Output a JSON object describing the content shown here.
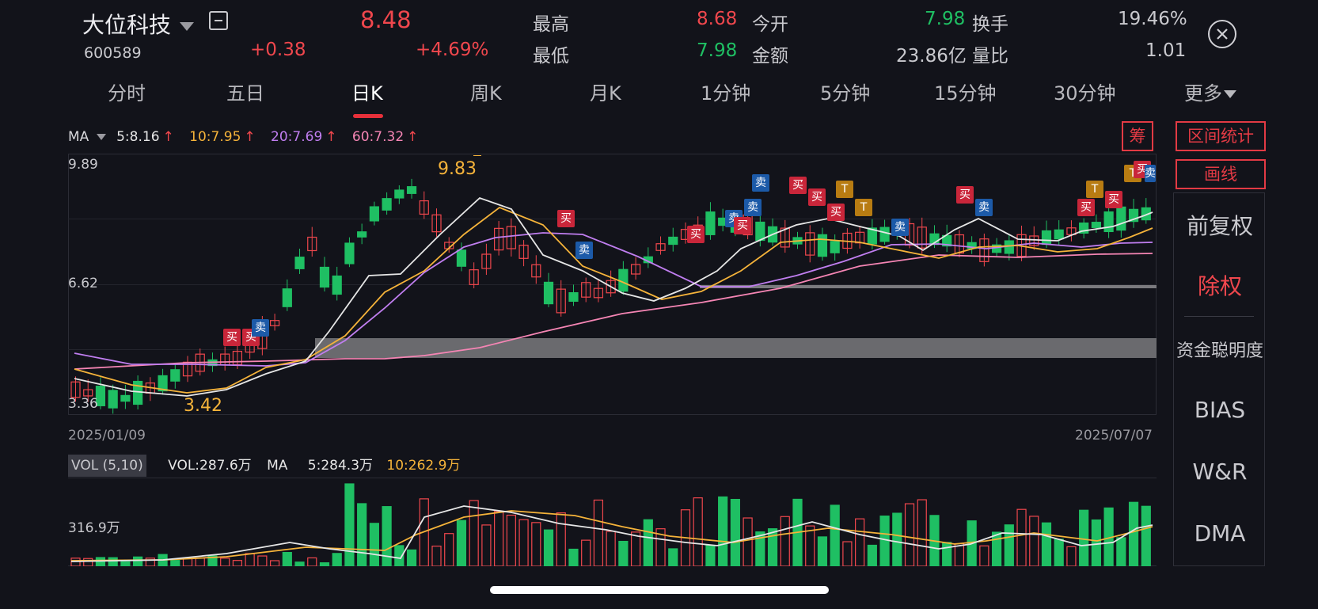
{
  "header": {
    "stock_name": "大位科技",
    "stock_code": "600589",
    "price": "8.48",
    "change": "+0.38",
    "change_pct": "+4.69%",
    "stats": [
      {
        "label": "最高",
        "value": "8.68"
      },
      {
        "label": "最低",
        "value": "7.98"
      },
      {
        "label": "今开",
        "value": "7.98"
      },
      {
        "label": "金额",
        "value": "23.86亿"
      },
      {
        "label": "换手",
        "value": "19.46%"
      },
      {
        "label": "量比",
        "value": "1.01"
      }
    ]
  },
  "tabs": [
    "分时",
    "五日",
    "日K",
    "周K",
    "月K",
    "1分钟",
    "5分钟",
    "15分钟",
    "30分钟",
    "更多"
  ],
  "active_tab": "日K",
  "ma_legend": {
    "label": "MA",
    "items": [
      {
        "text": "5:8.16",
        "color": "#e6e6e6"
      },
      {
        "text": "10:7.95",
        "color": "#f5b33a"
      },
      {
        "text": "20:7.69",
        "color": "#c07ef0"
      },
      {
        "text": "60:7.32",
        "color": "#f585b4"
      }
    ]
  },
  "price_axis": {
    "top": "9.89",
    "mid": "6.62",
    "bottom": "3.36"
  },
  "annotations": {
    "high": "9.83",
    "low": "3.42"
  },
  "date_axis": {
    "start": "2025/01/09",
    "end": "2025/07/07"
  },
  "volume": {
    "label": "VOL (5,10)",
    "vol": "VOL:287.6万",
    "ma": "MA",
    "ma5": "5:284.3万",
    "ma10": "10:262.9万",
    "axis": "316.9万"
  },
  "marks": {
    "buy": "买",
    "sell": "卖",
    "t": "T"
  },
  "side": {
    "chou": "筹",
    "range_stats": "区间统计",
    "draw": "画线",
    "items": [
      "前复权",
      "除权",
      "资金聪明度",
      "BIAS",
      "W&R",
      "DMA"
    ]
  },
  "colors": {
    "up": "#f0474d",
    "down": "#1fbf63",
    "ma5": "#e6e6e6",
    "ma10": "#f5b33a",
    "ma20": "#c07ef0",
    "ma60": "#f585b4"
  },
  "icons": {
    "dropdown": "dropdown-triangle-icon",
    "collapse": "collapse-square-icon",
    "close": "close-circle-icon"
  }
}
